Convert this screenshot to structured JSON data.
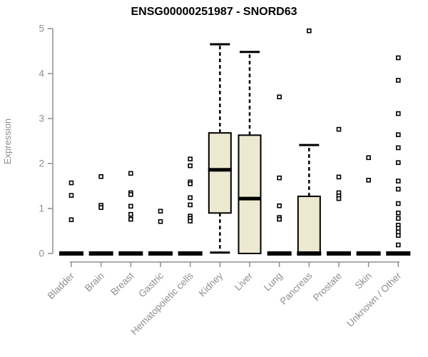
{
  "title": "ENSG00000251987 - SNORD63",
  "colors": {
    "box_fill": "#EDE8D0",
    "box_stroke": "#000000",
    "median": "#000000",
    "axis": "#8E8E8E",
    "label_gray": "#8E8E8E",
    "title_color": "#000000"
  },
  "chart_data": {
    "type": "boxplot",
    "title": "ENSG00000251987 - SNORD63",
    "ylabel": "Expression",
    "xlabel": "",
    "ylim": [
      0,
      5
    ],
    "yticks": [
      0,
      1,
      2,
      3,
      4,
      5
    ],
    "grid": false,
    "legend": false,
    "categories": [
      "Bladder",
      "Brain",
      "Breast",
      "Gastric",
      "Hematopoietic cells",
      "Kidney",
      "Liver",
      "Lung",
      "Pancreas",
      "Prostate",
      "Skin",
      "Unknown / Other"
    ],
    "boxes": [
      {
        "category": "Bladder",
        "whisker_low": 0,
        "q1": 0,
        "median": 0,
        "q3": 0,
        "whisker_high": 0,
        "outliers": [
          1.57,
          1.29,
          0.75
        ]
      },
      {
        "category": "Brain",
        "whisker_low": 0,
        "q1": 0,
        "median": 0,
        "q3": 0,
        "whisker_high": 0,
        "outliers": [
          1.71,
          1.07,
          1.02
        ]
      },
      {
        "category": "Breast",
        "whisker_low": 0,
        "q1": 0,
        "median": 0,
        "q3": 0,
        "whisker_high": 0,
        "outliers": [
          1.78,
          1.35,
          1.31,
          1.05,
          0.87,
          0.76
        ]
      },
      {
        "category": "Gastric",
        "whisker_low": 0,
        "q1": 0,
        "median": 0,
        "q3": 0,
        "whisker_high": 0,
        "outliers": [
          0.94,
          0.71
        ]
      },
      {
        "category": "Hematopoietic cells",
        "whisker_low": 0,
        "q1": 0,
        "median": 0,
        "q3": 0,
        "whisker_high": 0,
        "outliers": [
          2.1,
          1.95,
          1.59,
          1.55,
          1.24,
          1.08,
          0.83,
          0.78,
          0.72
        ]
      },
      {
        "category": "Kidney",
        "whisker_low": 0.02,
        "q1": 0.9,
        "median": 1.86,
        "q3": 2.68,
        "whisker_high": 4.65,
        "outliers": []
      },
      {
        "category": "Liver",
        "whisker_low": 0,
        "q1": 0,
        "median": 1.22,
        "q3": 2.63,
        "whisker_high": 4.48,
        "outliers": []
      },
      {
        "category": "Lung",
        "whisker_low": 0,
        "q1": 0,
        "median": 0,
        "q3": 0,
        "whisker_high": 0,
        "outliers": [
          3.48,
          1.68,
          1.06,
          0.8,
          0.76
        ]
      },
      {
        "category": "Pancreas",
        "whisker_low": 0,
        "q1": 0,
        "median": 0,
        "q3": 1.27,
        "whisker_high": 2.41,
        "outliers": [
          4.95
        ]
      },
      {
        "category": "Prostate",
        "whisker_low": 0,
        "q1": 0,
        "median": 0,
        "q3": 0,
        "whisker_high": 0,
        "outliers": [
          2.76,
          1.7,
          1.35,
          1.28,
          1.22
        ]
      },
      {
        "category": "Skin",
        "whisker_low": 0,
        "q1": 0,
        "median": 0,
        "q3": 0,
        "whisker_high": 0,
        "outliers": [
          2.13,
          1.63
        ]
      },
      {
        "category": "Unknown / Other",
        "whisker_low": 0,
        "q1": 0,
        "median": 0,
        "q3": 0,
        "whisker_high": 0,
        "outliers": [
          4.35,
          3.85,
          3.11,
          2.64,
          2.35,
          2.02,
          1.61,
          1.43,
          1.11,
          0.9,
          0.78,
          0.63,
          0.56,
          0.48,
          0.4,
          0.19
        ]
      }
    ]
  }
}
